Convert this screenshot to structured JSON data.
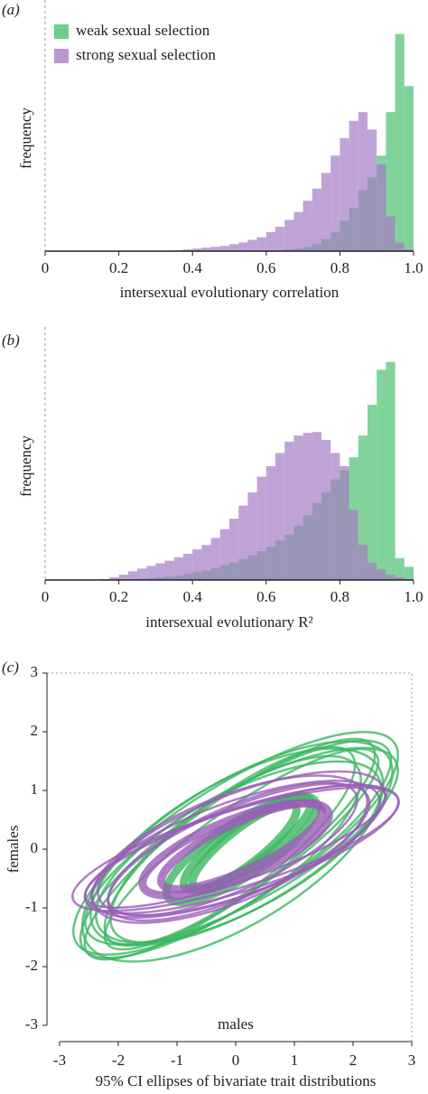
{
  "chart_data": [
    {
      "type": "histogram",
      "panel": "(a)",
      "xlabel": "intersexual evolutionary correlation",
      "ylabel": "frequency",
      "bins": [
        0,
        0.025,
        0.05,
        0.075,
        0.1,
        0.125,
        0.15,
        0.175,
        0.2,
        0.225,
        0.25,
        0.275,
        0.3,
        0.325,
        0.35,
        0.375,
        0.4,
        0.425,
        0.45,
        0.475,
        0.5,
        0.525,
        0.55,
        0.575,
        0.6,
        0.625,
        0.65,
        0.675,
        0.7,
        0.725,
        0.75,
        0.775,
        0.8,
        0.825,
        0.85,
        0.875,
        0.9,
        0.925,
        0.95,
        0.975,
        1
      ],
      "series": [
        {
          "name": "weak sexual selection",
          "color": "#4cc070",
          "counts": [
            0,
            0,
            0,
            0,
            0,
            0,
            0,
            0,
            0,
            0,
            0,
            0,
            0,
            0,
            0,
            0,
            0,
            0,
            0,
            0,
            0,
            0,
            0,
            0,
            0,
            0,
            2,
            3,
            5,
            8,
            14,
            22,
            35,
            50,
            70,
            85,
            110,
            160,
            250,
            190
          ]
        },
        {
          "name": "strong sexual selection",
          "color": "#a47cc4",
          "counts": [
            0,
            0,
            0,
            0,
            0,
            0,
            0,
            0,
            0,
            0,
            0,
            0,
            0,
            0,
            1,
            2,
            3,
            4,
            5,
            6,
            8,
            10,
            13,
            16,
            22,
            28,
            36,
            45,
            58,
            72,
            90,
            110,
            130,
            150,
            160,
            140,
            100,
            40,
            10,
            2
          ]
        }
      ],
      "xlim": [
        0,
        1
      ],
      "ylim": [
        0,
        260
      ],
      "xticks": [
        0,
        0.2,
        0.4,
        0.6,
        0.8,
        {
          "value": 1,
          "label": "1.0"
        }
      ],
      "legend": "upper left"
    },
    {
      "type": "histogram",
      "panel": "(b)",
      "xlabel": "intersexual evolutionary R²",
      "ylabel": "frequency",
      "bins": [
        0,
        0.025,
        0.05,
        0.075,
        0.1,
        0.125,
        0.15,
        0.175,
        0.2,
        0.225,
        0.25,
        0.275,
        0.3,
        0.325,
        0.35,
        0.375,
        0.4,
        0.425,
        0.45,
        0.475,
        0.5,
        0.525,
        0.55,
        0.575,
        0.6,
        0.625,
        0.65,
        0.675,
        0.7,
        0.725,
        0.75,
        0.775,
        0.8,
        0.825,
        0.85,
        0.875,
        0.9,
        0.925,
        0.95,
        0.975,
        1
      ],
      "series": [
        {
          "color": "#4cc070",
          "counts": [
            0,
            0,
            0,
            0,
            0,
            0,
            0,
            0,
            0,
            0,
            1,
            2,
            3,
            4,
            5,
            7,
            9,
            11,
            14,
            17,
            20,
            24,
            28,
            33,
            38,
            45,
            52,
            62,
            74,
            88,
            100,
            115,
            125,
            140,
            165,
            200,
            240,
            249,
            25,
            15
          ]
        },
        {
          "color": "#a47cc4",
          "counts": [
            0,
            0,
            0,
            0,
            0,
            0,
            1,
            3,
            6,
            10,
            13,
            16,
            19,
            22,
            26,
            30,
            35,
            40,
            48,
            58,
            70,
            85,
            100,
            118,
            130,
            145,
            158,
            165,
            168,
            169,
            160,
            145,
            130,
            80,
            40,
            20,
            12,
            6,
            3,
            1
          ]
        }
      ],
      "xlim": [
        0,
        1
      ],
      "ylim": [
        0,
        260
      ],
      "xticks": [
        0,
        0.2,
        0.4,
        0.6,
        0.8,
        {
          "value": 1,
          "label": "1.0"
        }
      ]
    },
    {
      "type": "ellipse",
      "panel": "(c)",
      "xlabel": "95% CI ellipses of bivariate trait distributions",
      "ylabel": "females",
      "inner_xlabel": "males",
      "series": [
        {
          "color": "#3cb660",
          "ellipses": [
            {
              "x": 0,
              "y": 0,
              "a": 3.1,
              "b": 0.9,
              "angle": 33
            },
            {
              "x": 0.1,
              "y": 0.1,
              "a": 2.9,
              "b": 1.1,
              "angle": 30
            },
            {
              "x": -0.1,
              "y": 0,
              "a": 3.0,
              "b": 0.8,
              "angle": 36
            },
            {
              "x": 0.05,
              "y": -0.05,
              "a": 2.7,
              "b": 1.0,
              "angle": 28
            },
            {
              "x": 0,
              "y": 0.1,
              "a": 3.2,
              "b": 1.0,
              "angle": 32
            },
            {
              "x": 0.1,
              "y": 0,
              "a": 2.8,
              "b": 0.7,
              "angle": 35
            },
            {
              "x": -0.05,
              "y": -0.1,
              "a": 2.9,
              "b": 1.2,
              "angle": 31
            },
            {
              "x": 0,
              "y": 0,
              "a": 2.5,
              "b": 0.9,
              "angle": 34
            },
            {
              "x": 0.1,
              "y": 0.05,
              "a": 3.0,
              "b": 0.95,
              "angle": 29
            },
            {
              "x": -0.1,
              "y": 0.05,
              "a": 2.6,
              "b": 0.8,
              "angle": 37
            },
            {
              "x": 0.2,
              "y": 0.1,
              "a": 1.3,
              "b": 0.35,
              "angle": 35
            },
            {
              "x": 0.1,
              "y": 0,
              "a": 1.5,
              "b": 0.45,
              "angle": 33
            },
            {
              "x": 0.15,
              "y": 0.05,
              "a": 1.1,
              "b": 0.3,
              "angle": 38
            }
          ]
        },
        {
          "color": "#9b5cb8",
          "ellipses": [
            {
              "x": 0,
              "y": 0,
              "a": 2.6,
              "b": 0.8,
              "angle": 20
            },
            {
              "x": 0.1,
              "y": 0,
              "a": 2.8,
              "b": 0.7,
              "angle": 18
            },
            {
              "x": -0.1,
              "y": 0,
              "a": 2.5,
              "b": 0.9,
              "angle": 22
            },
            {
              "x": 0,
              "y": 0.05,
              "a": 2.7,
              "b": 0.6,
              "angle": 19
            },
            {
              "x": 0.05,
              "y": -0.05,
              "a": 2.4,
              "b": 0.75,
              "angle": 23
            },
            {
              "x": 0,
              "y": 0,
              "a": 2.9,
              "b": 0.65,
              "angle": 17
            },
            {
              "x": 0.1,
              "y": 0.1,
              "a": 2.6,
              "b": 0.85,
              "angle": 21
            },
            {
              "x": -0.05,
              "y": 0,
              "a": 2.3,
              "b": 0.7,
              "angle": 24
            },
            {
              "x": 0.1,
              "y": 0.05,
              "a": 1.5,
              "b": 0.4,
              "angle": 25
            },
            {
              "x": 0,
              "y": 0,
              "a": 1.7,
              "b": 0.5,
              "angle": 22
            }
          ]
        }
      ],
      "xlim": [
        -3,
        3
      ],
      "ylim": [
        -3,
        3
      ],
      "xticks": [
        -3,
        -2,
        -1,
        0,
        1,
        2,
        3
      ],
      "yticks": [
        -3,
        -2,
        -1,
        0,
        1,
        2,
        3
      ]
    }
  ]
}
